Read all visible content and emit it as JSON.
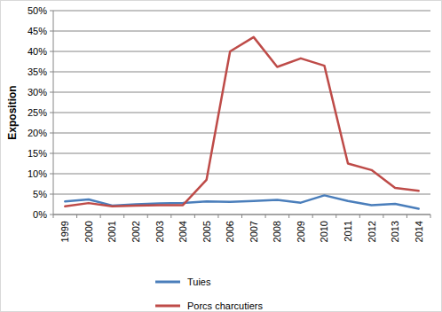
{
  "chart_data": {
    "type": "line",
    "y_label": "Exposition",
    "categories": [
      "1999",
      "2000",
      "2001",
      "2002",
      "2003",
      "2004",
      "2005",
      "2006",
      "2007",
      "2008",
      "2009",
      "2010",
      "2011",
      "2012",
      "2013",
      "2014"
    ],
    "series": [
      {
        "name": "Tuies",
        "color": "#4a7ebb",
        "values": [
          3.2,
          3.7,
          2.2,
          2.5,
          2.7,
          2.8,
          3.2,
          3.1,
          3.3,
          3.6,
          2.9,
          4.7,
          3.3,
          2.3,
          2.6,
          1.4
        ]
      },
      {
        "name": "Porcs charcutiers",
        "color": "#be4b48",
        "values": [
          2.0,
          2.8,
          2.0,
          2.2,
          2.3,
          2.3,
          8.5,
          40.0,
          43.5,
          36.2,
          38.3,
          36.5,
          12.5,
          10.9,
          6.5,
          5.8
        ]
      }
    ],
    "ylim": [
      0,
      50
    ],
    "yticks": [
      {
        "value": 0,
        "label": "0%"
      },
      {
        "value": 5,
        "label": "5%"
      },
      {
        "value": 10,
        "label": "10%"
      },
      {
        "value": 15,
        "label": "15%"
      },
      {
        "value": 20,
        "label": "20%"
      },
      {
        "value": 25,
        "label": "25%"
      },
      {
        "value": 30,
        "label": "30%"
      },
      {
        "value": 35,
        "label": "35%"
      },
      {
        "value": 40,
        "label": "40%"
      },
      {
        "value": 45,
        "label": "45%"
      },
      {
        "value": 50,
        "label": "50%"
      }
    ],
    "grid": true,
    "legend": "bottom"
  }
}
